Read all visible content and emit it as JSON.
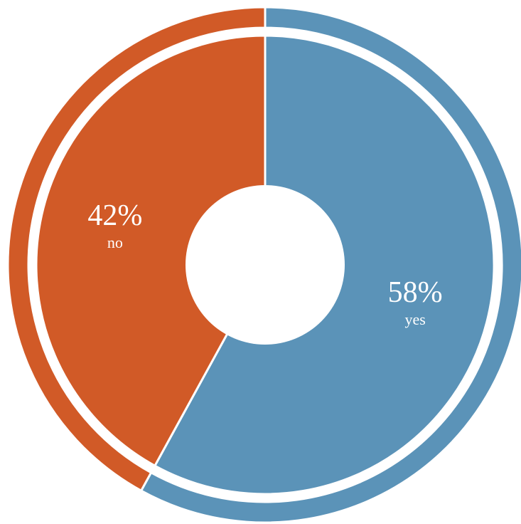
{
  "chart_data": {
    "type": "pie",
    "style": "donut with outer ring",
    "categories": [
      "yes",
      "no"
    ],
    "values": [
      58,
      42
    ],
    "value_labels": [
      "58%",
      "42%"
    ],
    "colors": [
      "#5b93b8",
      "#d15a27"
    ],
    "legend": "none"
  }
}
